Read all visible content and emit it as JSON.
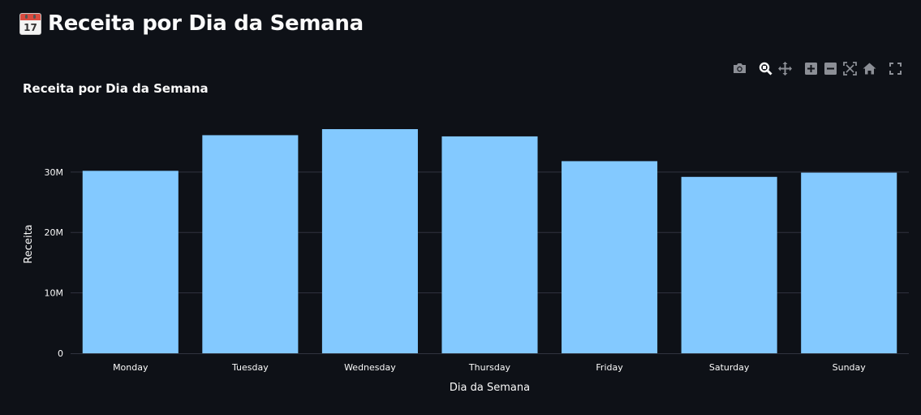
{
  "header": {
    "title": "Receita por Dia da Semana",
    "icon": "calendar-icon",
    "icon_day": "17"
  },
  "modebar": {
    "buttons": [
      "camera-icon",
      "zoom-icon",
      "pan-icon",
      "zoom-in-icon",
      "zoom-out-icon",
      "autoscale-icon",
      "reset-axes-icon",
      "fullscreen-icon"
    ]
  },
  "colors": {
    "background": "#0e1117",
    "bar": "#83c9ff",
    "grid": "#31333f",
    "text": "#fafafa",
    "modebar_icon": "#8c8f96"
  },
  "chart_data": {
    "type": "bar",
    "title": "Receita por Dia da Semana",
    "xlabel": "Dia da Semana",
    "ylabel": "Receita",
    "categories": [
      "Monday",
      "Tuesday",
      "Wednesday",
      "Thursday",
      "Friday",
      "Saturday",
      "Sunday"
    ],
    "values": [
      30200000,
      36100000,
      37100000,
      35900000,
      31800000,
      29200000,
      29900000
    ],
    "ylim": [
      0,
      41000000
    ],
    "yticks": [
      0,
      10000000,
      20000000,
      30000000
    ],
    "ytick_labels": [
      "0",
      "10M",
      "20M",
      "30M"
    ],
    "grid": true,
    "legend": "none"
  }
}
